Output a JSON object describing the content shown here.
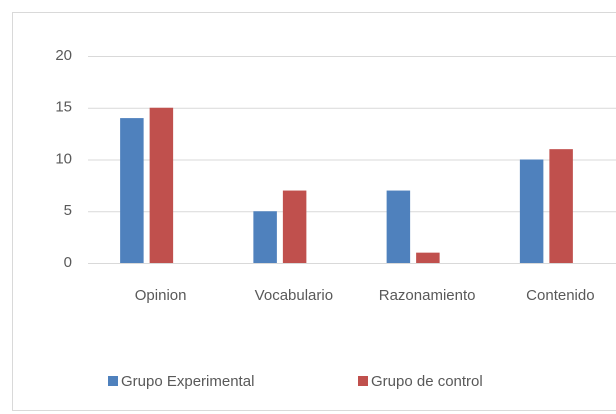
{
  "chart_data": {
    "type": "bar",
    "categories": [
      "Opinion",
      "Vocabulario",
      "Razonamiento",
      "Contenido"
    ],
    "series": [
      {
        "name": "Grupo Experimental",
        "color": "#4f81bd",
        "values": [
          14,
          5,
          7,
          10
        ]
      },
      {
        "name": "Grupo de control",
        "color": "#c0504d",
        "values": [
          15,
          7,
          1,
          11
        ]
      }
    ],
    "ylim": [
      0,
      20
    ],
    "yticks": [
      0,
      5,
      10,
      15,
      20
    ],
    "grid": true,
    "legend": "bottom"
  }
}
